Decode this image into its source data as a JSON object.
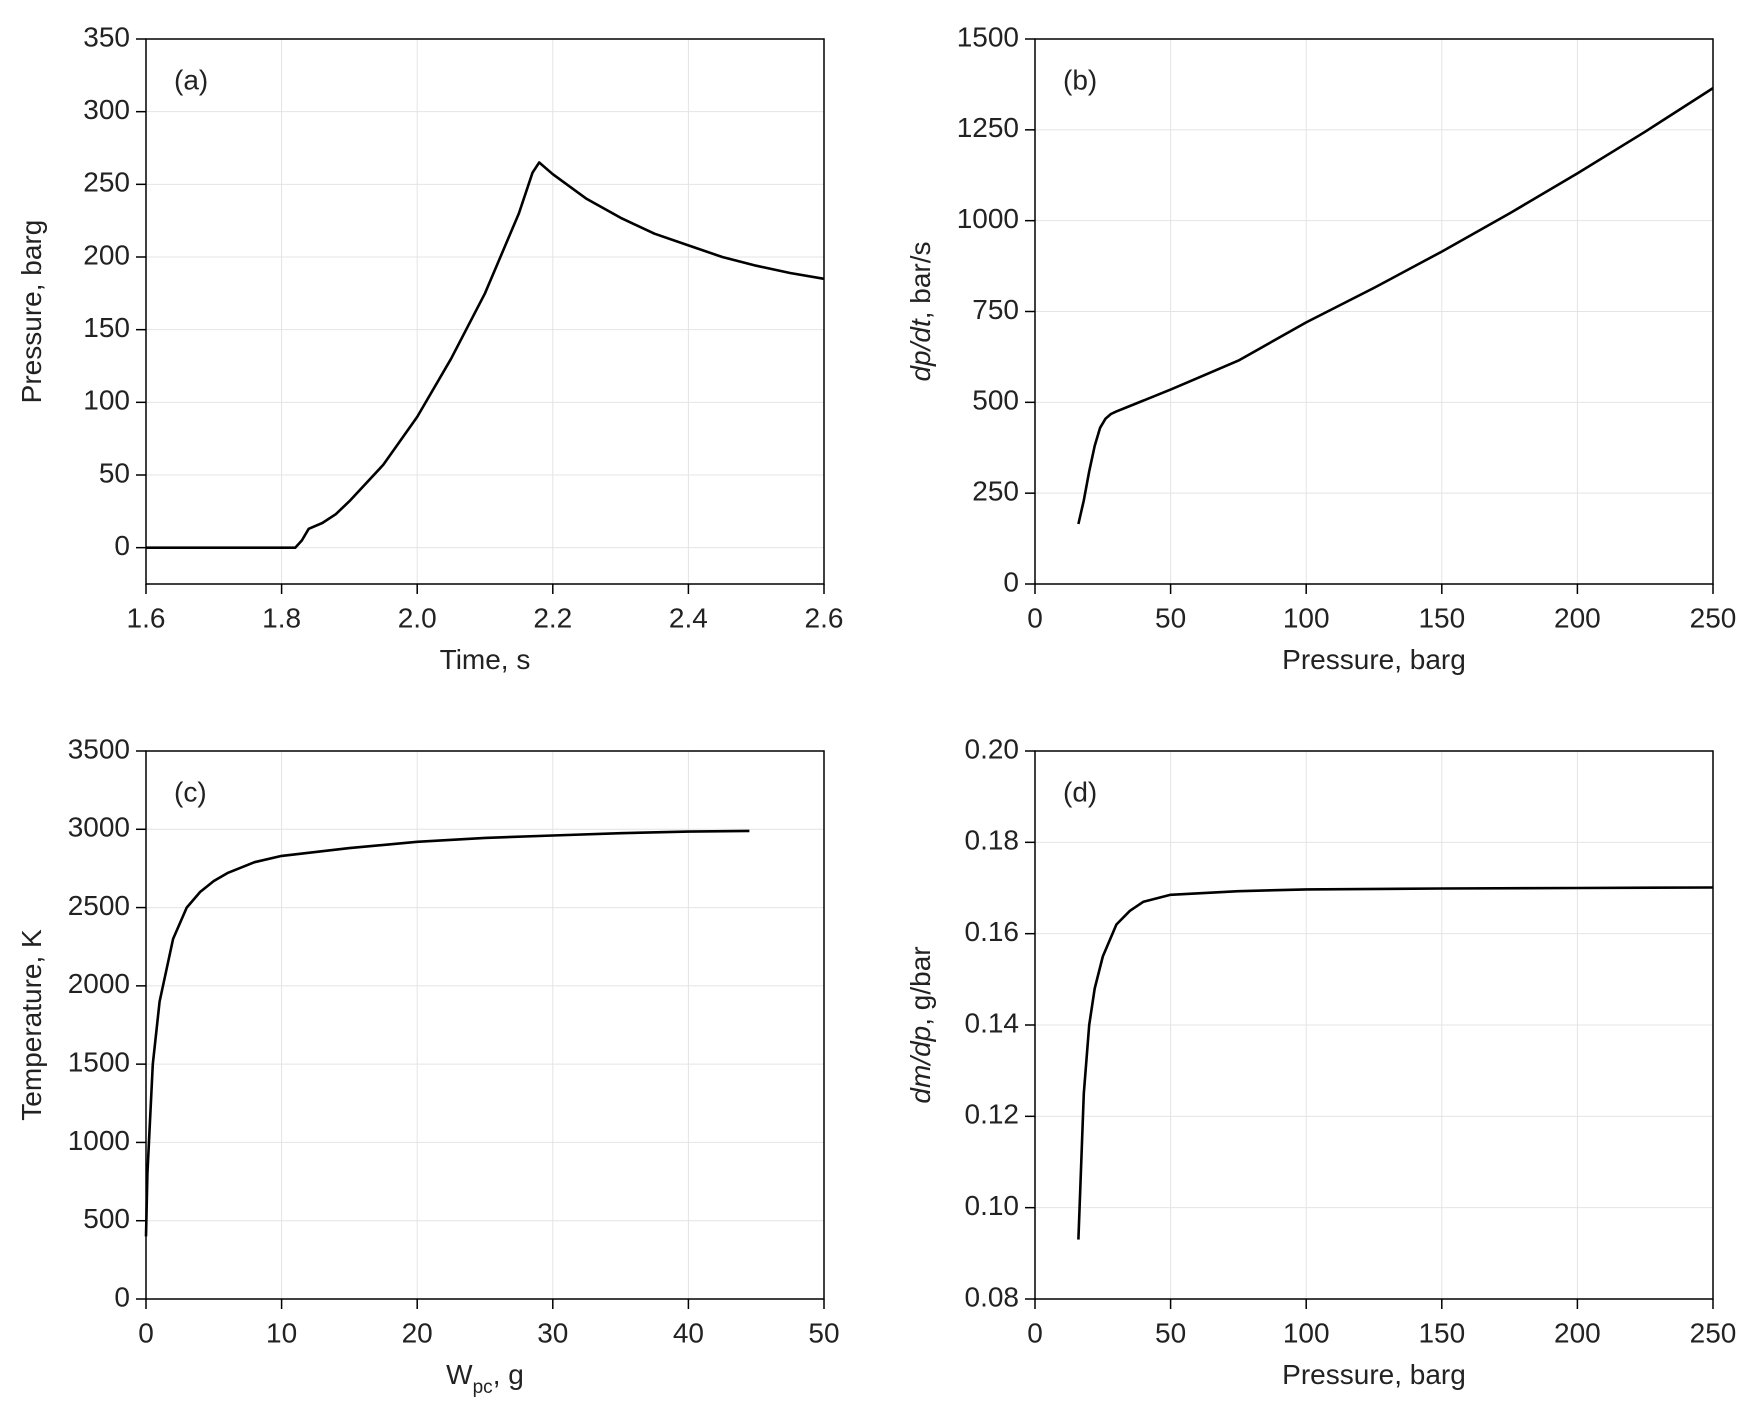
{
  "chart_data": [
    {
      "type": "line",
      "panel_label": "(a)",
      "xlabel": [
        {
          "text": "Time, s"
        }
      ],
      "ylabel": [
        {
          "text": "Pressure, barg"
        }
      ],
      "xlim": [
        1.6,
        2.6
      ],
      "xticks": [
        1.6,
        1.8,
        {
          "value": 2,
          "label": "2.0"
        },
        2.2,
        2.4,
        2.6
      ],
      "ylim": [
        -25,
        350
      ],
      "yticks": [
        0,
        50,
        100,
        150,
        200,
        250,
        300,
        350
      ],
      "grid": true,
      "series": [
        {
          "color": "#000000",
          "x": [
            1.6,
            1.7,
            1.82,
            1.83,
            1.84,
            1.86,
            1.88,
            1.9,
            1.95,
            2.0,
            2.05,
            2.1,
            2.15,
            2.17,
            2.18,
            2.2,
            2.25,
            2.3,
            2.35,
            2.4,
            2.45,
            2.5,
            2.55,
            2.6
          ],
          "values": [
            0,
            0,
            0,
            5,
            13,
            17,
            23,
            32,
            57,
            90,
            130,
            175,
            230,
            258,
            265,
            257,
            240,
            227,
            216,
            208,
            200,
            194,
            189,
            185
          ]
        }
      ]
    },
    {
      "type": "line",
      "panel_label": "(b)",
      "xlabel": [
        {
          "text": "Pressure, barg"
        }
      ],
      "ylabel": [
        {
          "text": "dp/dt",
          "style": "italic"
        },
        {
          "text": ", bar/s"
        }
      ],
      "xlim": [
        0,
        250
      ],
      "xticks": [
        0,
        50,
        100,
        150,
        200,
        250
      ],
      "ylim": [
        0,
        1500
      ],
      "yticks": [
        0,
        250,
        500,
        750,
        1000,
        1250,
        1500
      ],
      "grid": true,
      "series": [
        {
          "color": "#000000",
          "x": [
            16,
            18,
            20,
            22,
            24,
            26,
            28,
            30,
            35,
            50,
            75,
            100,
            125,
            150,
            175,
            200,
            225,
            250
          ],
          "values": [
            165,
            230,
            310,
            380,
            430,
            455,
            468,
            475,
            490,
            535,
            615,
            720,
            815,
            915,
            1020,
            1130,
            1245,
            1365
          ]
        }
      ]
    },
    {
      "type": "line",
      "panel_label": "(c)",
      "xlabel": [
        {
          "text": "W"
        },
        {
          "text": "pc",
          "style": "sub"
        },
        {
          "text": ", g"
        }
      ],
      "ylabel": [
        {
          "text": "Temperature, K"
        }
      ],
      "xlim": [
        0,
        50
      ],
      "xticks": [
        0,
        10,
        20,
        30,
        40,
        50
      ],
      "ylim": [
        0,
        3500
      ],
      "yticks": [
        0,
        500,
        1000,
        1500,
        2000,
        2500,
        3000,
        3500
      ],
      "grid": true,
      "series": [
        {
          "color": "#000000",
          "x": [
            0,
            0.1,
            0.5,
            1,
            2,
            3,
            4,
            5,
            6,
            8,
            10,
            15,
            20,
            25,
            30,
            35,
            40,
            44.5
          ],
          "values": [
            400,
            800,
            1500,
            1900,
            2300,
            2500,
            2600,
            2670,
            2720,
            2790,
            2830,
            2880,
            2920,
            2945,
            2960,
            2975,
            2985,
            2990
          ]
        }
      ]
    },
    {
      "type": "line",
      "panel_label": "(d)",
      "xlabel": [
        {
          "text": "Pressure, barg"
        }
      ],
      "ylabel": [
        {
          "text": "dm/dp",
          "style": "italic"
        },
        {
          "text": ", g/bar"
        }
      ],
      "xlim": [
        0,
        250
      ],
      "xticks": [
        0,
        50,
        100,
        150,
        200,
        250
      ],
      "ylim": [
        0.08,
        0.2
      ],
      "yticks": [
        0.08,
        {
          "value": 0.1,
          "label": "0.10"
        },
        0.12,
        0.14,
        0.16,
        0.18,
        {
          "value": 0.2,
          "label": "0.20"
        }
      ],
      "grid": true,
      "series": [
        {
          "color": "#000000",
          "x": [
            16,
            18,
            20,
            22,
            25,
            30,
            35,
            40,
            50,
            75,
            100,
            150,
            200,
            250
          ],
          "values": [
            0.093,
            0.125,
            0.14,
            0.148,
            0.155,
            0.162,
            0.165,
            0.167,
            0.1685,
            0.1693,
            0.1697,
            0.1699,
            0.17,
            0.1701
          ]
        }
      ]
    }
  ]
}
